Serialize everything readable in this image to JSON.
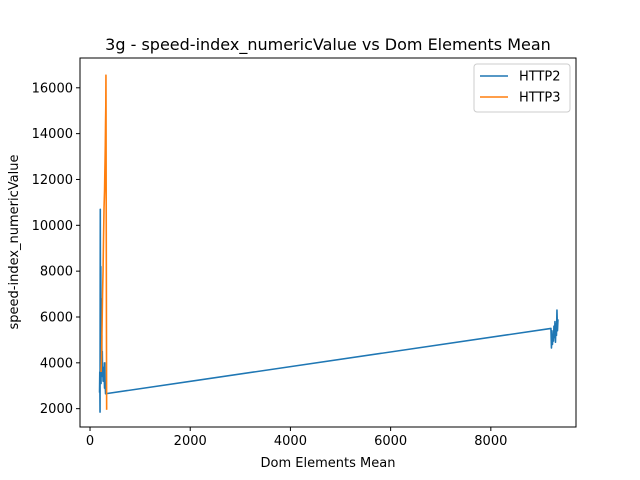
{
  "chart_data": {
    "type": "line",
    "title": "3g - speed-index_numericValue vs Dom Elements Mean",
    "xlabel": "Dom Elements Mean",
    "ylabel": "speed-index_numericValue",
    "xlim": [
      -200,
      9700
    ],
    "ylim": [
      1200,
      17300
    ],
    "xticks": [
      0,
      2000,
      4000,
      6000,
      8000
    ],
    "xtick_labels": [
      "0",
      "2000",
      "4000",
      "6000",
      "8000"
    ],
    "yticks": [
      2000,
      4000,
      6000,
      8000,
      10000,
      12000,
      14000,
      16000
    ],
    "ytick_labels": [
      "2000",
      "4000",
      "6000",
      "8000",
      "10000",
      "12000",
      "14000",
      "16000"
    ],
    "grid": false,
    "legend_position": "top-right",
    "series": [
      {
        "name": "HTTP2",
        "color": "#1f77b4",
        "points": [
          [
            190,
            2700
          ],
          [
            195,
            3600
          ],
          [
            200,
            1850
          ],
          [
            205,
            10700
          ],
          [
            210,
            4500
          ],
          [
            215,
            8200
          ],
          [
            220,
            3100
          ],
          [
            225,
            6800
          ],
          [
            230,
            3500
          ],
          [
            235,
            5200
          ],
          [
            240,
            3800
          ],
          [
            245,
            4500
          ],
          [
            250,
            3400
          ],
          [
            255,
            4000
          ],
          [
            260,
            3200
          ],
          [
            265,
            3700
          ],
          [
            270,
            3300
          ],
          [
            275,
            3800
          ],
          [
            280,
            3600
          ],
          [
            290,
            2900
          ],
          [
            295,
            4000
          ],
          [
            300,
            3300
          ],
          [
            310,
            2650
          ],
          [
            9200,
            5500
          ],
          [
            9210,
            4650
          ],
          [
            9220,
            5400
          ],
          [
            9230,
            4800
          ],
          [
            9240,
            5200
          ],
          [
            9250,
            4950
          ],
          [
            9260,
            5600
          ],
          [
            9270,
            5100
          ],
          [
            9280,
            5800
          ],
          [
            9290,
            4900
          ],
          [
            9300,
            5700
          ],
          [
            9310,
            5200
          ],
          [
            9320,
            6300
          ],
          [
            9330,
            5400
          ],
          [
            9340,
            5900
          ]
        ]
      },
      {
        "name": "HTTP3",
        "color": "#ff7f0e",
        "points": [
          [
            220,
            3600
          ],
          [
            230,
            4200
          ],
          [
            240,
            5500
          ],
          [
            250,
            7000
          ],
          [
            260,
            8000
          ],
          [
            270,
            9500
          ],
          [
            280,
            10800
          ],
          [
            290,
            11500
          ],
          [
            295,
            12200
          ],
          [
            300,
            12800
          ],
          [
            305,
            13500
          ],
          [
            310,
            14500
          ],
          [
            315,
            15200
          ],
          [
            318,
            16550
          ],
          [
            320,
            14800
          ],
          [
            322,
            12000
          ],
          [
            325,
            9000
          ],
          [
            328,
            5500
          ],
          [
            330,
            3300
          ],
          [
            332,
            1950
          ]
        ]
      }
    ]
  }
}
